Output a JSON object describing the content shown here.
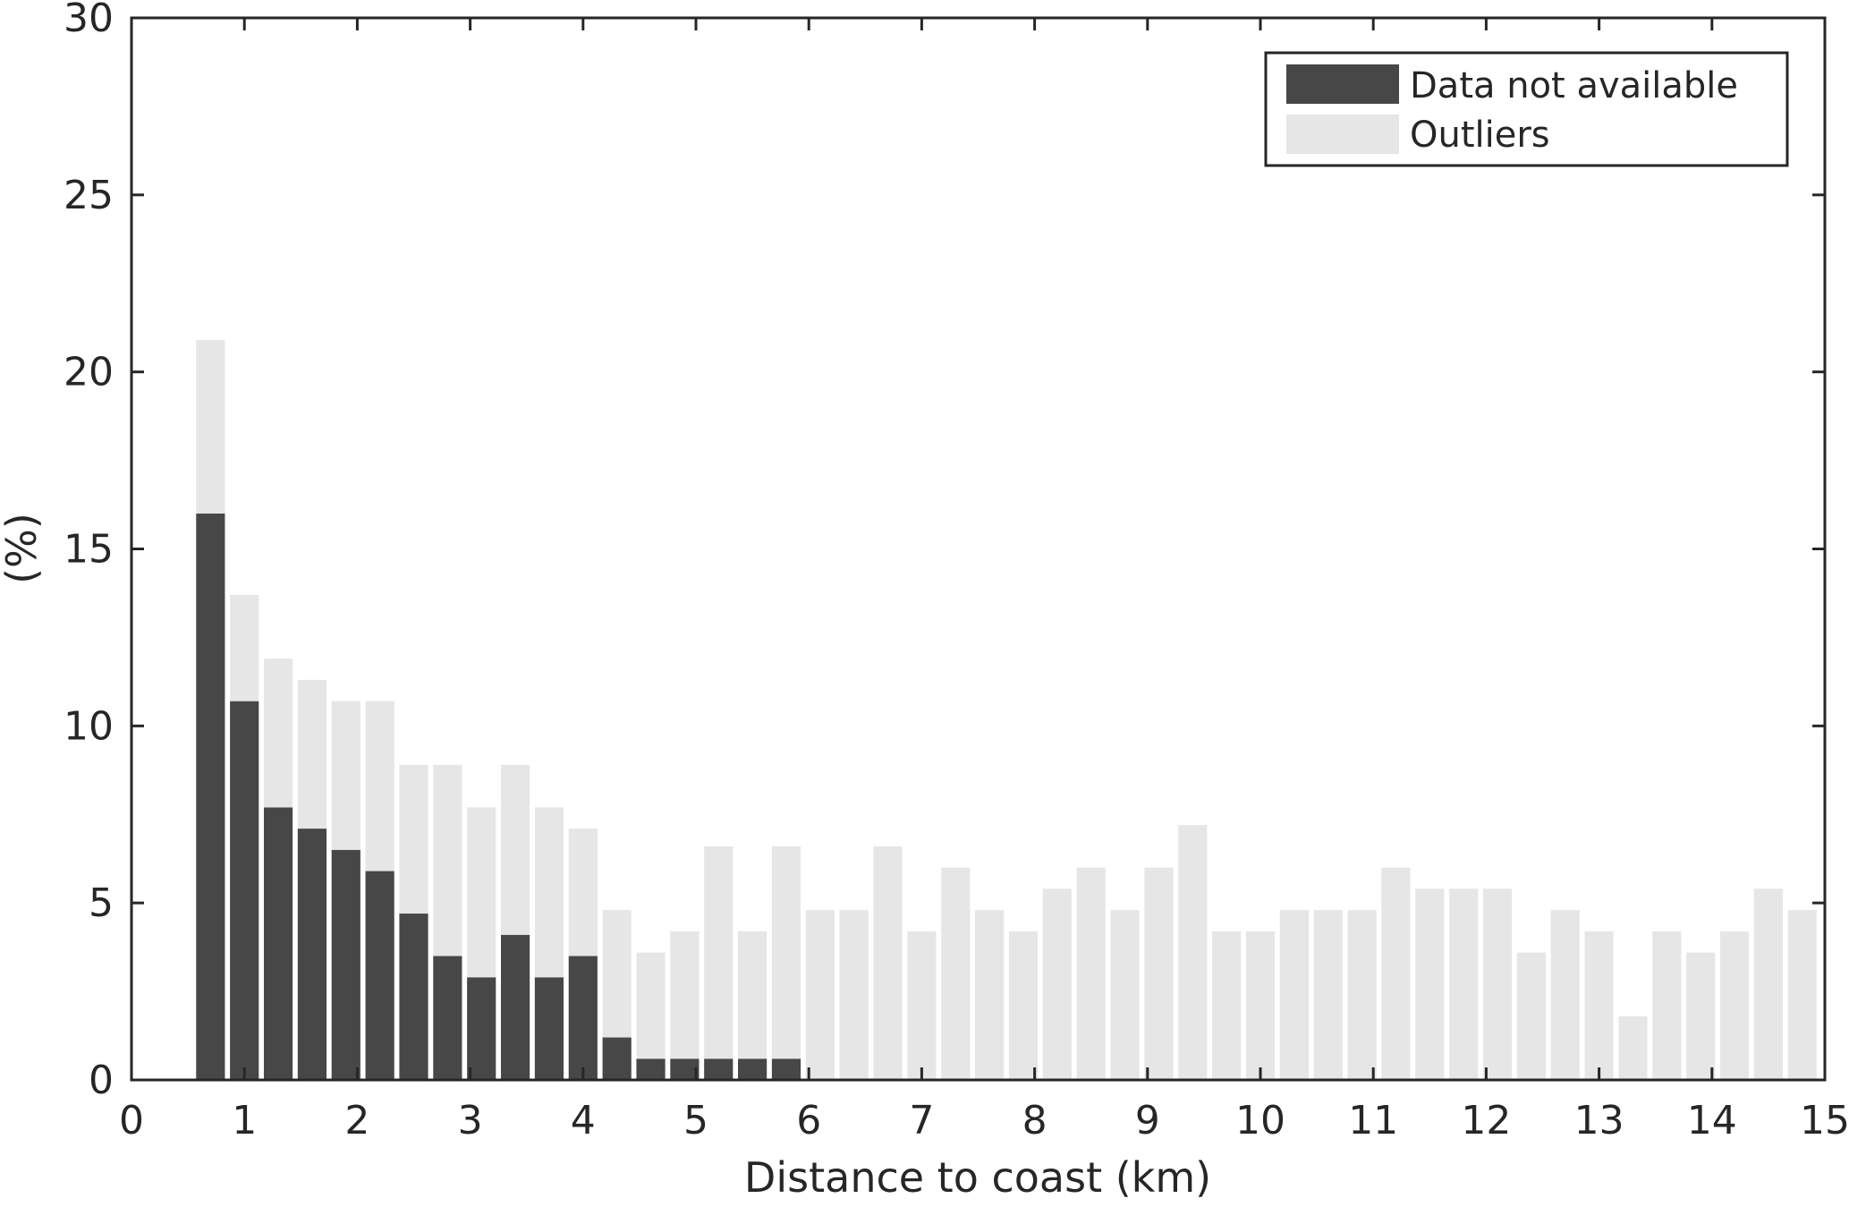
{
  "chart_data": {
    "type": "bar",
    "stacked": true,
    "title": "",
    "xlabel": "Distance to coast (km)",
    "ylabel": "(%)",
    "xlim": [
      0,
      15
    ],
    "ylim": [
      0,
      30
    ],
    "xticks": [
      "0",
      "1",
      "2",
      "3",
      "4",
      "5",
      "6",
      "7",
      "8",
      "9",
      "10",
      "11",
      "12",
      "13",
      "14",
      "15"
    ],
    "yticks": [
      "0",
      "5",
      "10",
      "15",
      "20",
      "25",
      "30"
    ],
    "grid": false,
    "legend_position": "top-right",
    "x": [
      0.7,
      1.0,
      1.3,
      1.6,
      1.9,
      2.2,
      2.5,
      2.8,
      3.1,
      3.4,
      3.7,
      4.0,
      4.3,
      4.6,
      4.9,
      5.2,
      5.5,
      5.8,
      6.1,
      6.4,
      6.7,
      7.0,
      7.3,
      7.6,
      7.9,
      8.2,
      8.5,
      8.8,
      9.1,
      9.4,
      9.7,
      10.0,
      10.3,
      10.6,
      10.9,
      11.2,
      11.5,
      11.8,
      12.1,
      12.4,
      12.7,
      13.0,
      13.3,
      13.6,
      13.9,
      14.2,
      14.5,
      14.8
    ],
    "series": [
      {
        "name": "Data not available",
        "color": "#474747",
        "values": [
          16.0,
          10.7,
          7.7,
          7.1,
          6.5,
          5.9,
          4.7,
          3.5,
          2.9,
          4.1,
          2.9,
          3.5,
          1.2,
          0.6,
          0.6,
          0.6,
          0.6,
          0.6,
          0,
          0,
          0,
          0,
          0,
          0,
          0,
          0,
          0,
          0,
          0,
          0,
          0,
          0,
          0,
          0,
          0,
          0,
          0,
          0,
          0,
          0,
          0,
          0,
          0,
          0,
          0,
          0,
          0,
          0
        ]
      },
      {
        "name": "Outliers",
        "color": "#e6e6e6",
        "values": [
          4.9,
          3.0,
          4.2,
          4.2,
          4.2,
          4.8,
          4.2,
          5.4,
          4.8,
          4.8,
          4.8,
          3.6,
          3.6,
          3.0,
          3.6,
          6.0,
          3.6,
          6.0,
          4.8,
          4.8,
          6.6,
          4.2,
          6.0,
          4.8,
          4.2,
          5.4,
          6.0,
          4.8,
          6.0,
          7.2,
          4.2,
          4.2,
          4.8,
          4.8,
          4.8,
          6.0,
          5.4,
          5.4,
          5.4,
          3.6,
          4.8,
          4.2,
          1.8,
          4.2,
          3.6,
          4.2,
          5.4,
          4.8
        ]
      }
    ]
  }
}
